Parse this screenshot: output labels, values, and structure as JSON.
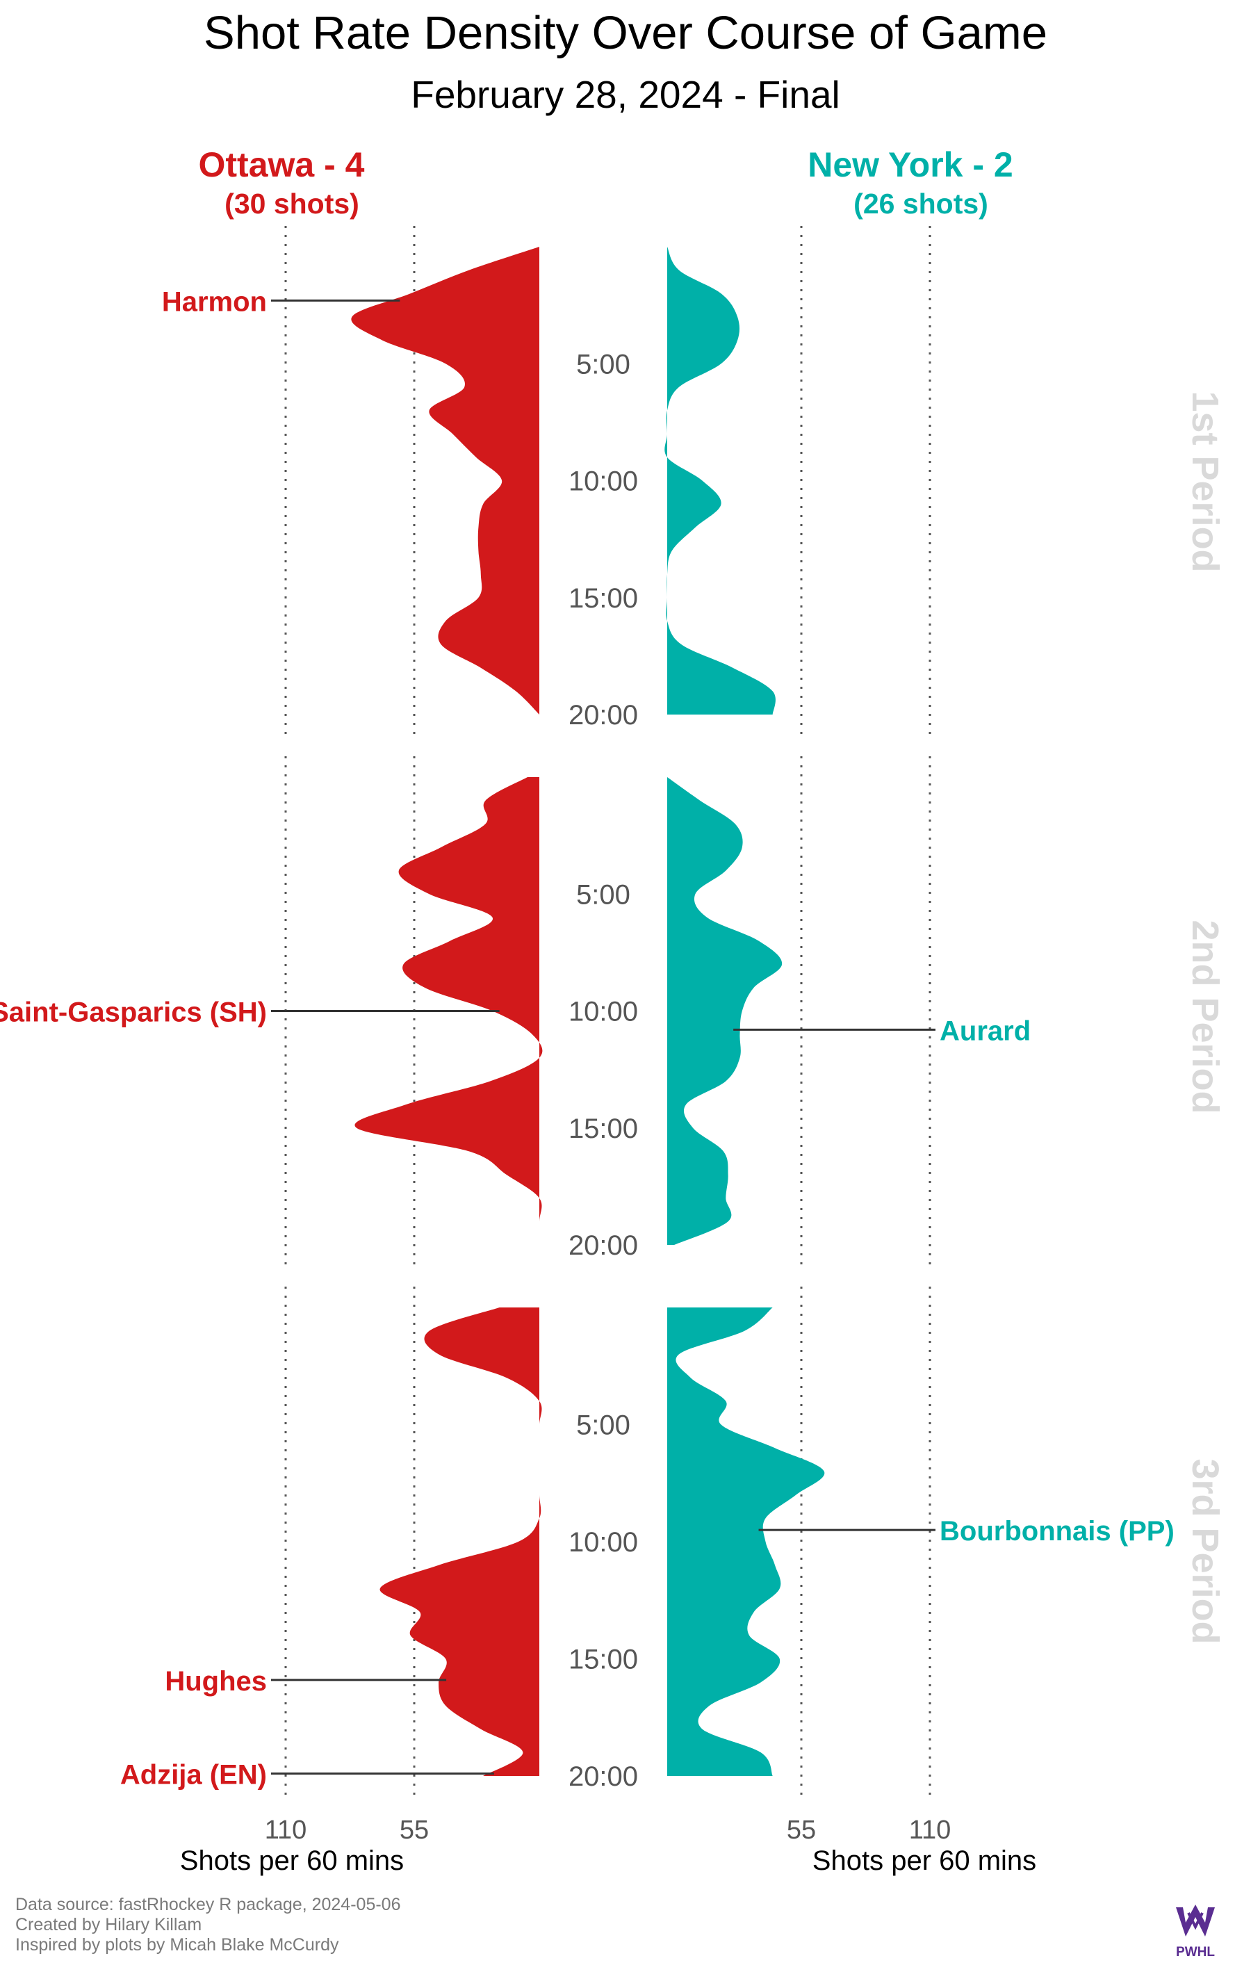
{
  "title": "Shot Rate Density Over Course of Game",
  "subtitle": "February 28, 2024 - Final",
  "colors": {
    "ottawa": "#d2191b",
    "newyork": "#00b0a8",
    "text": "#000000",
    "tick": "#555555",
    "period": "#d9d9d9"
  },
  "teams": {
    "left": {
      "name": "Ottawa - 4",
      "shots": "(30 shots)"
    },
    "right": {
      "name": "New York - 2",
      "shots": "(26 shots)"
    }
  },
  "periods": [
    "1st Period",
    "2nd Period",
    "3rd Period"
  ],
  "time_ticks": [
    "5:00",
    "10:00",
    "15:00",
    "20:00"
  ],
  "axis": {
    "label": "Shots per 60 mins",
    "left_ticks": [
      "110",
      "55"
    ],
    "right_ticks": [
      "55",
      "110"
    ]
  },
  "footer": [
    "Data source: fastRhockey R package, 2024-05-06",
    "Created by Hilary Killam",
    "Inspired by plots by Micah Blake McCurdy"
  ],
  "logo_text": "PWHL",
  "chart_data": {
    "type": "area",
    "x_unit": "minutes",
    "xlim": [
      0,
      20
    ],
    "ylim": [
      0,
      110
    ],
    "series": [
      {
        "name": "Ottawa - 4",
        "periods": [
          {
            "t": [
              0,
              1,
              2,
              3,
              4,
              5,
              6,
              7,
              8,
              9,
              10,
              11,
              12,
              13,
              14,
              15,
              16,
              17,
              18,
              19,
              20
            ],
            "v": [
              0,
              30,
              55,
              80,
              67,
              40,
              32,
              47,
              37,
              27,
              16,
              24,
              26,
              26,
              25,
              26,
              40,
              42,
              25,
              10,
              0
            ]
          },
          {
            "t": [
              0,
              1,
              2,
              3,
              4,
              5,
              6,
              7,
              8,
              9,
              10,
              11,
              12,
              13,
              14,
              15,
              16,
              17,
              18,
              19,
              20
            ],
            "v": [
              5,
              23,
              23,
              42,
              60,
              47,
              20,
              38,
              58,
              49,
              20,
              3,
              0,
              21,
              57,
              78,
              30,
              14,
              0,
              0,
              0
            ]
          },
          {
            "t": [
              0,
              1,
              2,
              3,
              4,
              5,
              6,
              7,
              8,
              9,
              10,
              11,
              12,
              13,
              14,
              15,
              16,
              17,
              18,
              19,
              20
            ],
            "v": [
              17,
              47,
              43,
              14,
              0,
              0,
              0,
              0,
              0,
              0,
              9,
              43,
              68,
              51,
              55,
              40,
              43,
              40,
              25,
              7,
              24
            ]
          }
        ]
      },
      {
        "name": "New York - 2",
        "periods": [
          {
            "t": [
              0,
              1,
              2,
              3,
              4,
              5,
              6,
              7,
              8,
              9,
              10,
              11,
              12,
              13,
              14,
              15,
              16,
              17,
              18,
              19,
              20
            ],
            "v": [
              0,
              5,
              23,
              30,
              30,
              23,
              5,
              0,
              0,
              0,
              15,
              23,
              12,
              2,
              0,
              0,
              0,
              6,
              28,
              45,
              45
            ]
          },
          {
            "t": [
              0,
              1,
              2,
              3,
              4,
              5,
              6,
              7,
              8,
              9,
              10,
              11,
              12,
              13,
              14,
              15,
              16,
              17,
              18,
              19,
              20
            ],
            "v": [
              0,
              14,
              29,
              32,
              25,
              12,
              17,
              39,
              49,
              37,
              32,
              31,
              31,
              25,
              8,
              11,
              24,
              26,
              25,
              26,
              3
            ]
          },
          {
            "t": [
              0,
              1,
              2,
              3,
              4,
              5,
              6,
              7,
              8,
              9,
              10,
              11,
              12,
              13,
              14,
              15,
              16,
              17,
              18,
              19,
              20
            ],
            "v": [
              45,
              33,
              5,
              10,
              25,
              23,
              46,
              67,
              55,
              42,
              42,
              46,
              48,
              37,
              35,
              48,
              40,
              18,
              15,
              40,
              45
            ]
          }
        ]
      }
    ],
    "goals": [
      {
        "team": "left",
        "label": "Harmon",
        "period": 1,
        "time": 2.3
      },
      {
        "team": "left",
        "label": "Saint-Gasparics (SH)",
        "period": 2,
        "time": 10.0
      },
      {
        "team": "left",
        "label": "Hughes",
        "period": 3,
        "time": 15.9
      },
      {
        "team": "left",
        "label": "Adzija (EN)",
        "period": 3,
        "time": 19.9
      },
      {
        "team": "right",
        "label": "Aurard",
        "period": 2,
        "time": 10.8
      },
      {
        "team": "right",
        "label": "Bourbonnais (PP)",
        "period": 3,
        "time": 9.5
      }
    ]
  }
}
